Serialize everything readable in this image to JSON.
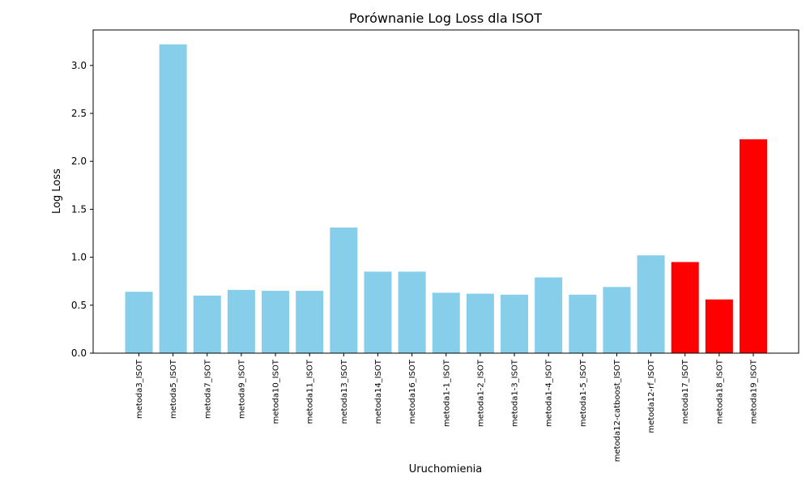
{
  "chart_data": {
    "type": "bar",
    "title": "Porównanie Log Loss dla ISOT",
    "xlabel": "Uruchomienia",
    "ylabel": "Log Loss",
    "ylim": [
      0,
      3.37
    ],
    "yticks": [
      "0.0",
      "0.5",
      "1.0",
      "1.5",
      "2.0",
      "2.5",
      "3.0"
    ],
    "grid": false,
    "legend": "none",
    "categories": [
      "metoda3_ISOT",
      "metoda5_ISOT",
      "metoda7_ISOT",
      "metoda9_ISOT",
      "metoda10_ISOT",
      "metoda11_ISOT",
      "metoda13_ISOT",
      "metoda14_ISOT",
      "metoda16_ISOT",
      "metoda1-1_ISOT",
      "metoda1-2_ISOT",
      "metoda1-3_ISOT",
      "metoda1-4_ISOT",
      "metoda1-5_ISOT",
      "metoda12-catboost_ISOT",
      "metoda12-rf_ISOT",
      "metoda17_ISOT",
      "metoda18_ISOT",
      "metoda19_ISOT"
    ],
    "values": [
      0.64,
      3.22,
      0.6,
      0.66,
      0.65,
      0.65,
      1.31,
      0.85,
      0.85,
      0.63,
      0.62,
      0.61,
      0.79,
      0.61,
      0.69,
      1.02,
      0.95,
      0.56,
      2.23
    ],
    "bar_colors": [
      "#87ceeb",
      "#87ceeb",
      "#87ceeb",
      "#87ceeb",
      "#87ceeb",
      "#87ceeb",
      "#87ceeb",
      "#87ceeb",
      "#87ceeb",
      "#87ceeb",
      "#87ceeb",
      "#87ceeb",
      "#87ceeb",
      "#87ceeb",
      "#87ceeb",
      "#87ceeb",
      "#ff0000",
      "#ff0000",
      "#ff0000"
    ]
  }
}
